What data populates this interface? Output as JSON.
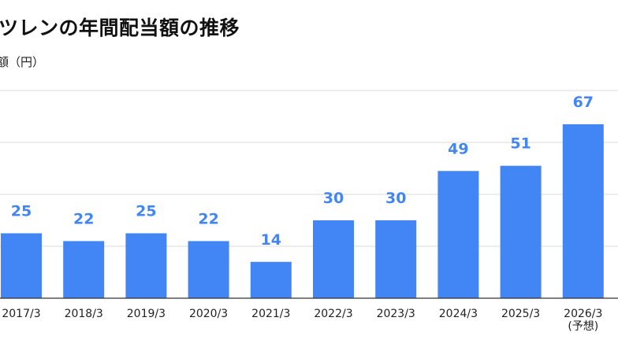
{
  "title": "ツレンの年間配当額の推移",
  "unit_label": "額（円）",
  "colors": {
    "bar": "#4285f4",
    "grid": "#d9d9d9",
    "axis": "#333333"
  },
  "chart_data": {
    "type": "bar",
    "title": "ツレンの年間配当額の推移",
    "ylabel": "額（円）",
    "categories": [
      "2017/3",
      "2018/3",
      "2019/3",
      "2020/3",
      "2021/3",
      "2022/3",
      "2023/3",
      "2024/3",
      "2025/3",
      "2026/3"
    ],
    "category_notes": [
      "",
      "",
      "",
      "",
      "",
      "",
      "",
      "",
      "",
      "(予想)"
    ],
    "values": [
      25,
      22,
      25,
      22,
      14,
      30,
      30,
      49,
      51,
      67
    ],
    "ylim": [
      0,
      80
    ],
    "grid": true,
    "data_labels": true
  }
}
